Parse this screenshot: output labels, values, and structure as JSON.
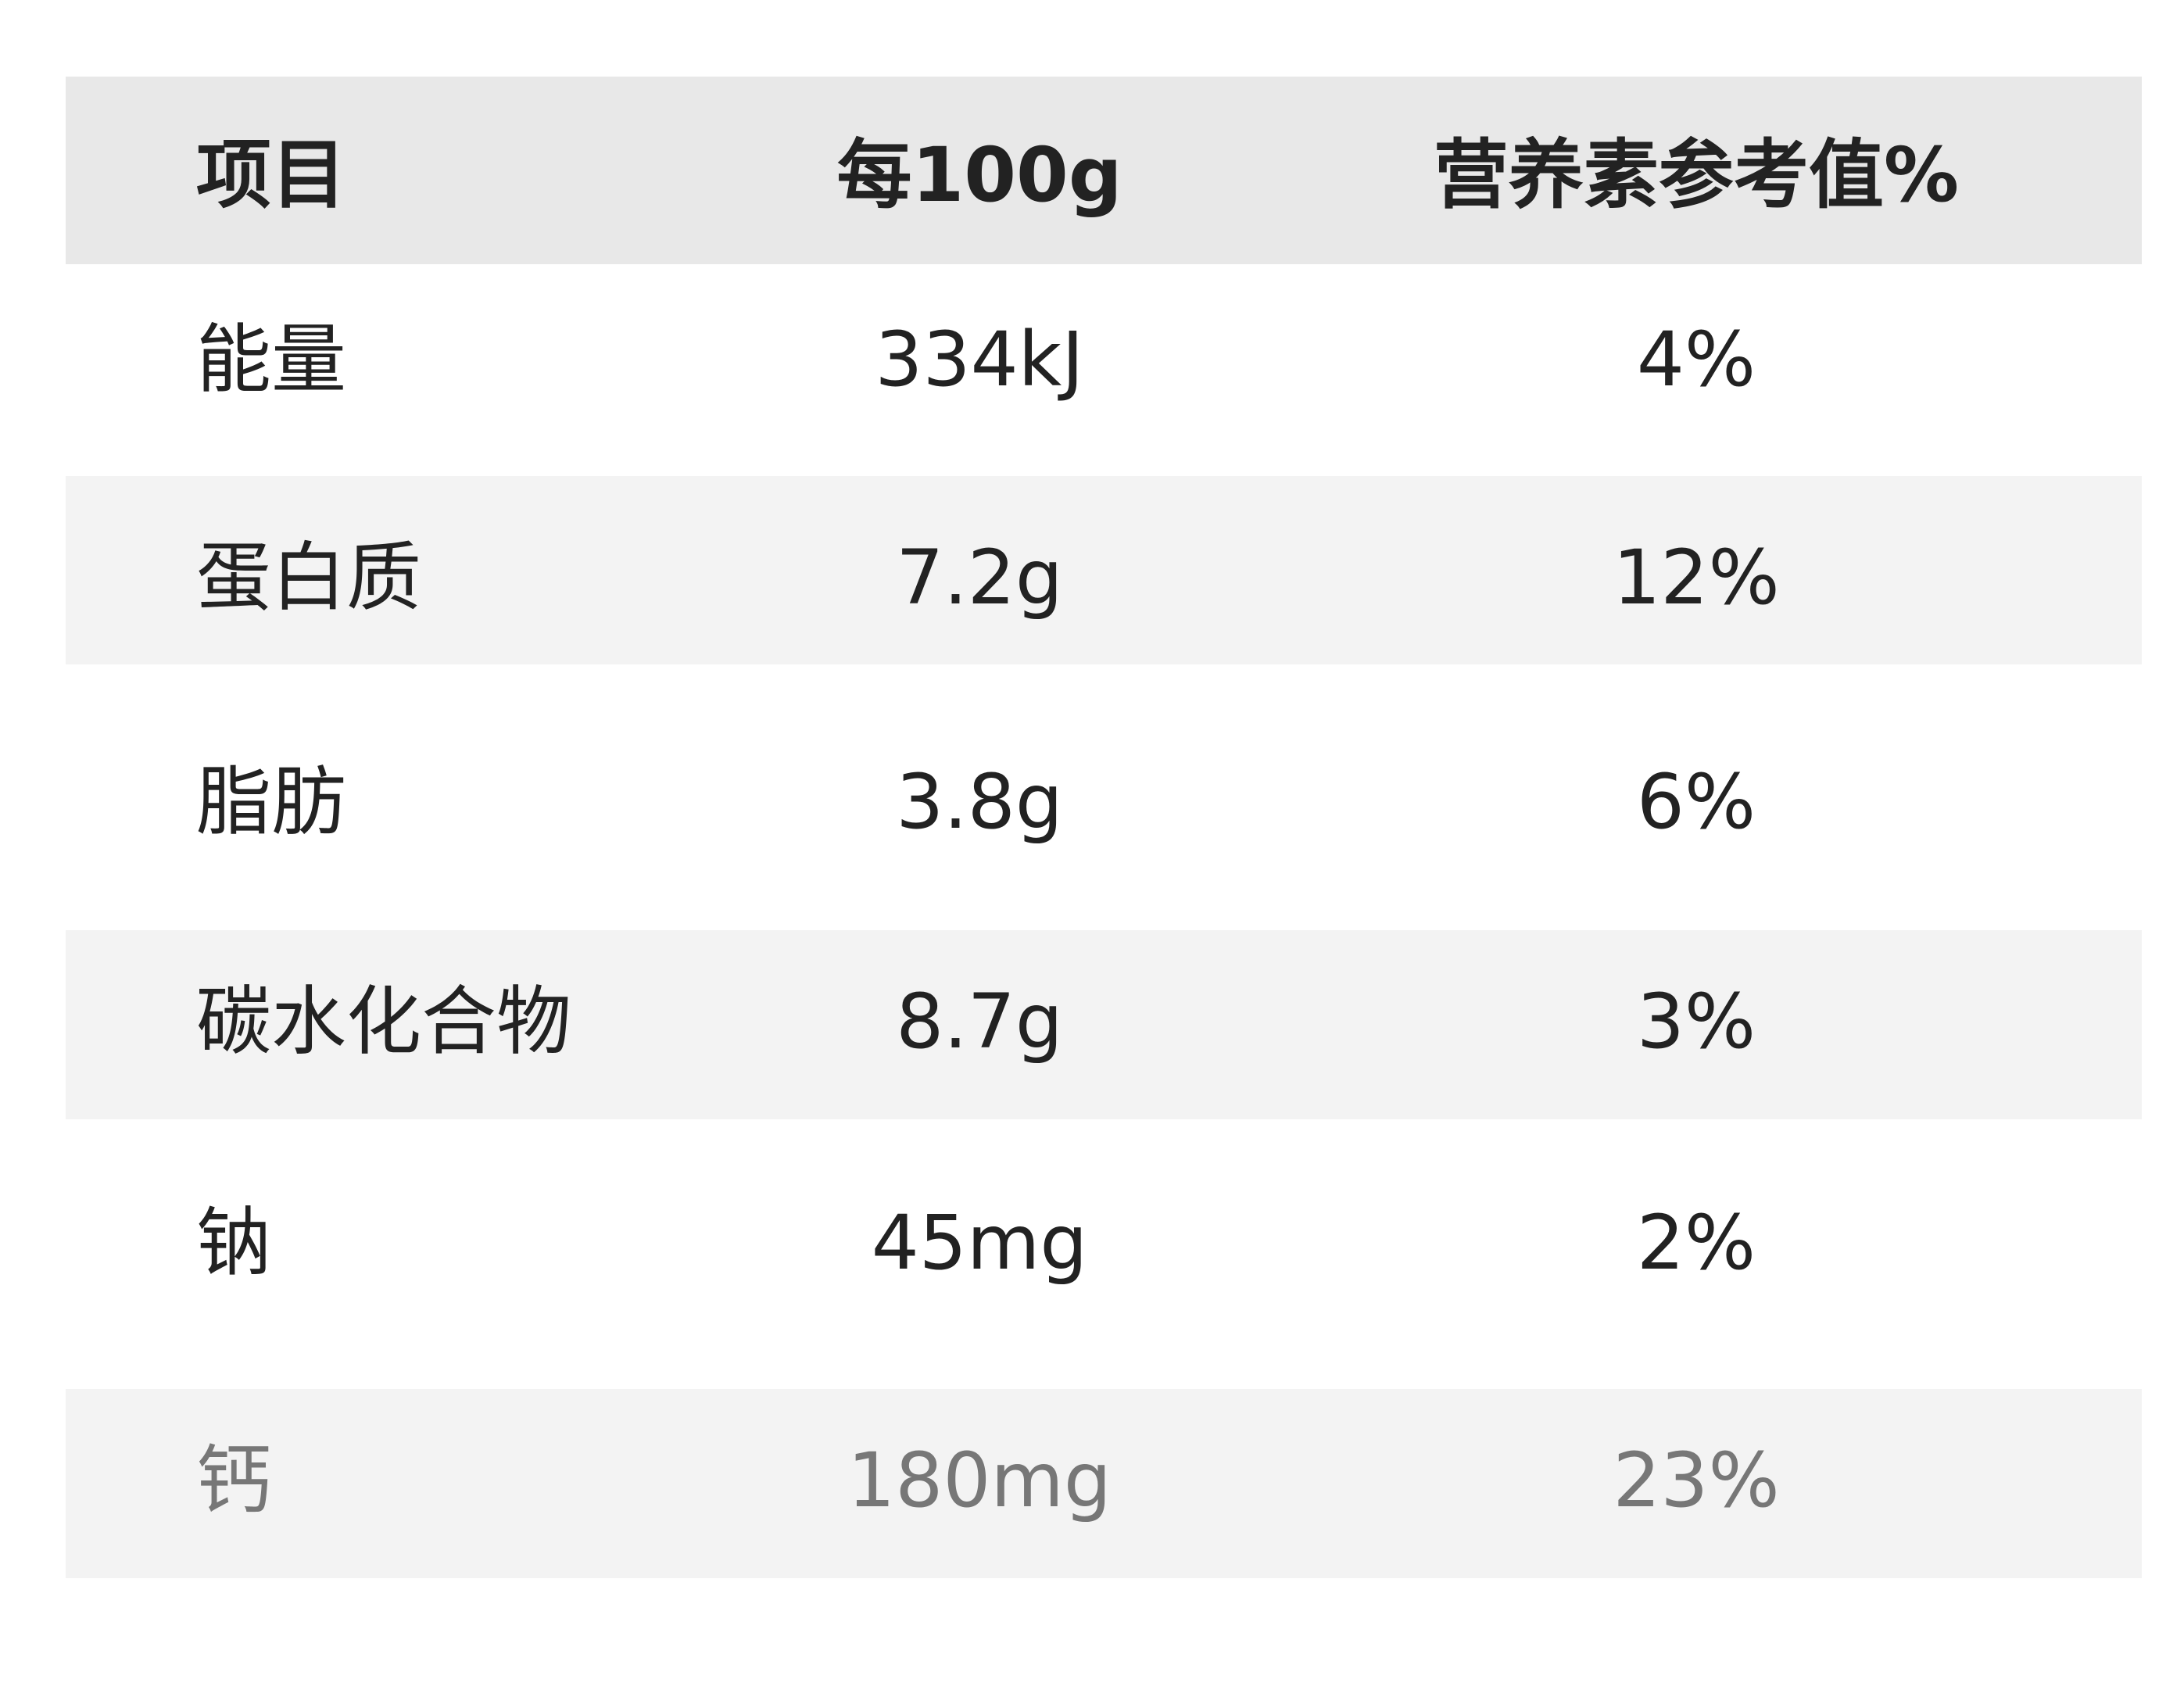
{
  "table": {
    "header": [
      "项目",
      "每100g",
      "营养素参考值%"
    ],
    "rows": [
      [
        "能量",
        "334kJ",
        "4%"
      ],
      [
        "蛋白质",
        "7.2g",
        "12%"
      ],
      [
        "脂肪",
        "3.8g",
        "6%"
      ],
      [
        "碳水化合物",
        "8.7g",
        "3%"
      ],
      [
        "钠",
        "45mg",
        "2%"
      ],
      [
        "钙",
        "180mg",
        "23%"
      ]
    ]
  }
}
